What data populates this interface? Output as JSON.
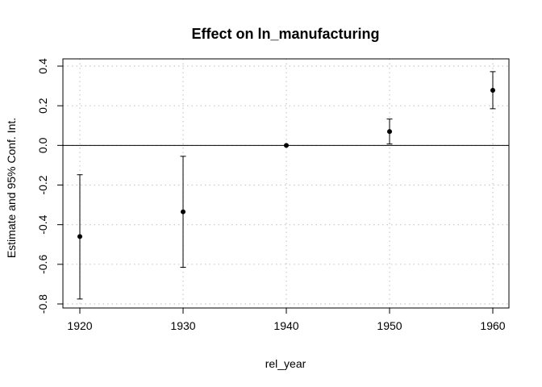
{
  "chart_data": {
    "type": "scatter",
    "title": "Effect on ln_manufacturing",
    "xlabel": "rel_year",
    "ylabel": "Estimate and 95% Conf. Int.",
    "x": [
      1920,
      1930,
      1940,
      1950,
      1960
    ],
    "series": [
      {
        "estimate": [
          -0.46,
          -0.335,
          0.0,
          0.07,
          0.278
        ],
        "ci_lower": [
          -0.775,
          -0.615,
          0.0,
          0.007,
          0.185
        ],
        "ci_upper": [
          -0.148,
          -0.055,
          0.0,
          0.133,
          0.372
        ]
      }
    ],
    "xlim": [
      1920,
      1960
    ],
    "ylim": [
      -0.8,
      0.4
    ],
    "x_ticks": [
      "1920",
      "1930",
      "1940",
      "1950",
      "1960"
    ],
    "y_ticks": [
      "-0.8",
      "-0.6",
      "-0.4",
      "-0.2",
      "0.0",
      "0.2",
      "0.4"
    ],
    "y_tick_values": [
      -0.8,
      -0.6,
      -0.4,
      -0.2,
      0.0,
      0.2,
      0.4
    ],
    "reference_line": 0,
    "grid": "dotted"
  },
  "colors": {
    "points": "#000000",
    "grid": "#c8c8c8",
    "axis": "#000000"
  }
}
